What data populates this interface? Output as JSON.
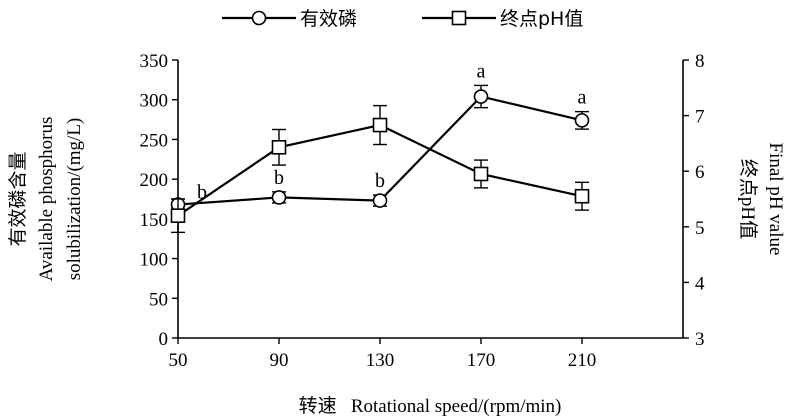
{
  "chart_data": {
    "type": "line",
    "legend": [
      "有效磷",
      "终点pH值"
    ],
    "legend_position": "top",
    "x": [
      50,
      90,
      130,
      170,
      210
    ],
    "x_ticks": [
      "50",
      "90",
      "130",
      "170",
      "210"
    ],
    "xlim": [
      50,
      250
    ],
    "xlabel": "转速   Rotational speed/(rpm/min)",
    "ylabel_left": [
      "有效磷含量",
      "Available phosphorus",
      "solubilization/(mg/L)"
    ],
    "ylabel_right": [
      "终点pH值",
      "Final pH value"
    ],
    "ylim_left": [
      0,
      350
    ],
    "ylim_right": [
      3,
      8
    ],
    "y_ticks_left": [
      "0",
      "50",
      "100",
      "150",
      "200",
      "250",
      "300",
      "350"
    ],
    "y_ticks_right": [
      "3",
      "4",
      "5",
      "6",
      "7",
      "8"
    ],
    "series": [
      {
        "name": "有效磷",
        "axis": "left",
        "marker": "circle",
        "values": [
          168,
          177,
          173,
          304,
          274
        ],
        "errors": [
          7,
          7,
          7,
          14,
          11
        ],
        "labels": [
          "b",
          "b",
          "b",
          "a",
          "a"
        ]
      },
      {
        "name": "终点pH值",
        "axis": "right",
        "marker": "square",
        "values": [
          5.2,
          6.43,
          6.83,
          5.95,
          5.55
        ],
        "errors": [
          0.3,
          0.32,
          0.35,
          0.25,
          0.25
        ]
      }
    ],
    "grid": false
  }
}
